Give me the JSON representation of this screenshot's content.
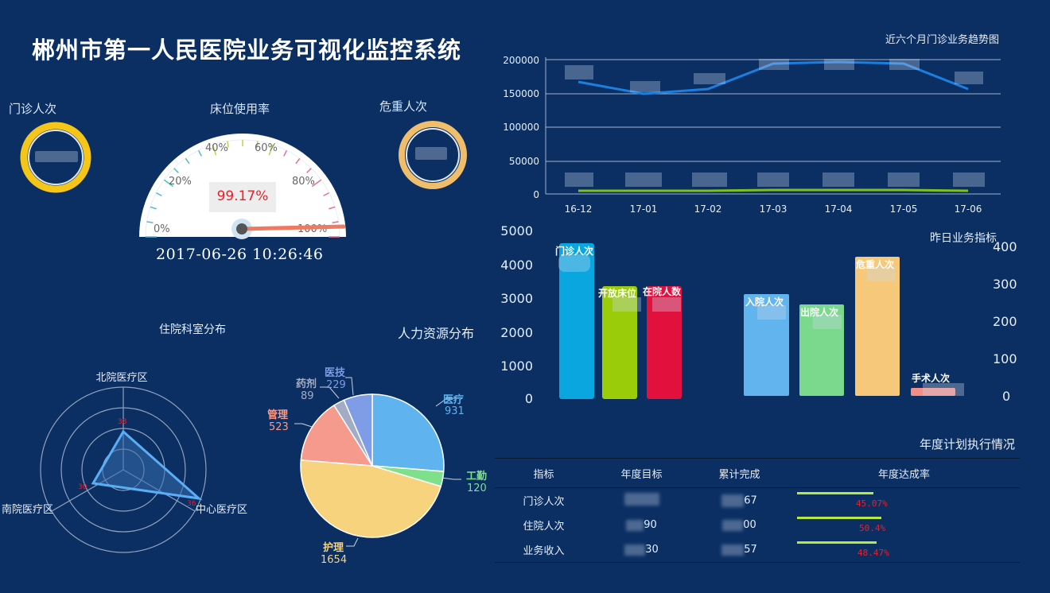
{
  "header": {
    "title": "郴州市第一人民医院业务可视化监控系统"
  },
  "gauges": {
    "outpatient_label": "门诊人次",
    "critical_label": "危重人次",
    "bed": {
      "label": "床位使用率",
      "value_text": "99.17%",
      "value": 99.17,
      "tick_labels": [
        "0%",
        "20%",
        "40%",
        "60%",
        "80%",
        "100%"
      ]
    },
    "clock": "2017-06-26 10:26:46"
  },
  "trend": {
    "title": "近六个月门诊业务趋势图",
    "y_ticks": [
      "200000",
      "150000",
      "100000",
      "50000",
      "0"
    ],
    "x_ticks": [
      "16-12",
      "17-01",
      "17-02",
      "17-03",
      "17-04",
      "17-05",
      "17-06"
    ]
  },
  "yesterday": {
    "title": "昨日业务指标",
    "left_axis": [
      "5000",
      "4000",
      "3000",
      "2000",
      "1000",
      "0"
    ],
    "right_axis": [
      "400",
      "300",
      "200",
      "100",
      "0"
    ],
    "bars": [
      {
        "label": "门诊人次",
        "color": "#0aa6e0"
      },
      {
        "label": "开放床位",
        "color": "#9bcc0a"
      },
      {
        "label": "在院人数",
        "color": "#e2103c"
      },
      {
        "label": "入院人次",
        "color": "#62b4ef"
      },
      {
        "label": "出院人次",
        "color": "#7ad98c"
      },
      {
        "label": "危重人次",
        "color": "#f6c97a"
      },
      {
        "label": "手术人次",
        "color": "#f28e86"
      }
    ]
  },
  "radar": {
    "title": "住院科室分布",
    "axes": [
      "北院医疗区",
      "中心医疗区",
      "南院医疗区"
    ],
    "values_text": [
      "38",
      "36",
      "30"
    ]
  },
  "hr": {
    "title": "人力资源分布",
    "slices": [
      {
        "name": "医疗",
        "value": 931,
        "color": "#5fb4f0"
      },
      {
        "name": "工勤",
        "value": 120,
        "color": "#7ee08a"
      },
      {
        "name": "护理",
        "value": 1654,
        "color": "#f6d37c"
      },
      {
        "name": "管理",
        "value": 523,
        "color": "#f59a8c"
      },
      {
        "name": "药剂",
        "value": 89,
        "color": "#a3acc4"
      },
      {
        "name": "医技",
        "value": 229,
        "color": "#7f9ce6"
      }
    ]
  },
  "plan": {
    "title": "年度计划执行情况",
    "headers": [
      "指标",
      "年度目标",
      "累计完成",
      "年度达成率"
    ],
    "rows": [
      {
        "name": "门诊人次",
        "target": "",
        "done": "67",
        "rate": "45.07%"
      },
      {
        "name": "住院人次",
        "target": "90",
        "done": "00",
        "rate": "50.4%"
      },
      {
        "name": "业务收入",
        "target": "30",
        "done": "57",
        "rate": "48.47%"
      }
    ]
  }
}
